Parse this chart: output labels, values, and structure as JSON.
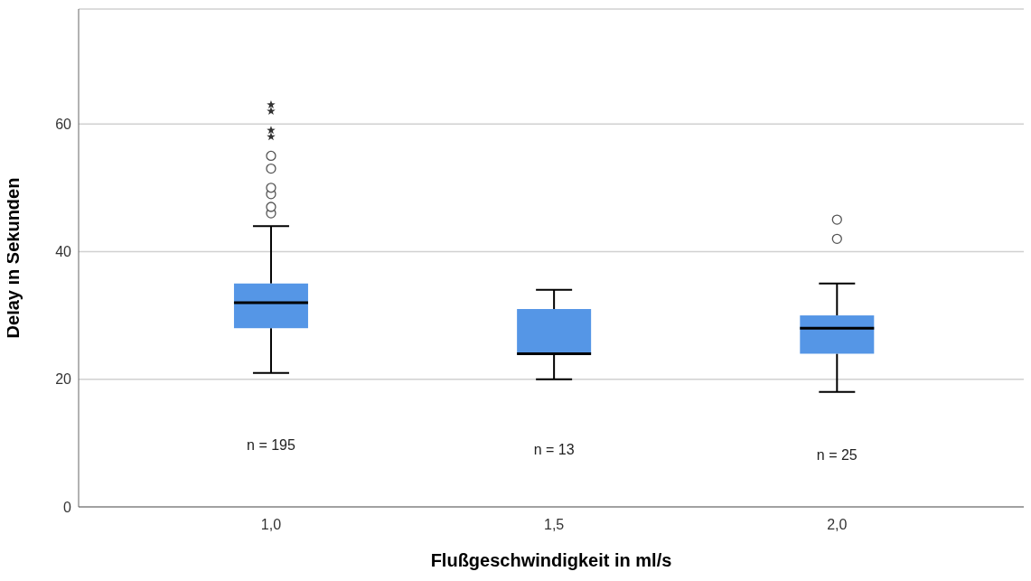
{
  "chart_data": {
    "type": "box",
    "xlabel": "Flußgeschwindigkeit in ml/s",
    "ylabel": "Delay in Sekunden",
    "categories": [
      "1,0",
      "1,5",
      "2,0"
    ],
    "color": "#5596e6",
    "boxes": [
      {
        "low": 21,
        "q1": 28,
        "median": 32,
        "q3": 35,
        "high": 44,
        "outliers": [
          46,
          47,
          49,
          50,
          53,
          55,
          58,
          59,
          62,
          63
        ]
      },
      {
        "low": 20,
        "q1": 24,
        "median": 24,
        "q3": 31,
        "high": 34
      },
      {
        "low": 18,
        "q1": 24,
        "median": 28,
        "q3": 30,
        "high": 35,
        "outliers": [
          42,
          45
        ]
      }
    ],
    "ylim": [
      0,
      78
    ],
    "yticks": [
      0,
      20,
      40,
      60
    ],
    "grid": "y",
    "annotations": [
      "n = 195",
      "n = 13",
      "n = 25"
    ]
  }
}
